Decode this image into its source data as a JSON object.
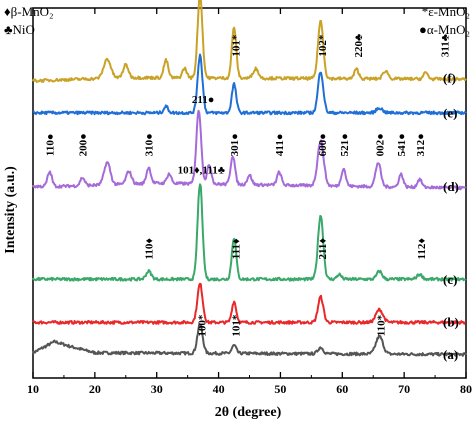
{
  "chart_data": {
    "type": "line",
    "xlabel": "2θ (degree)",
    "ylabel": "Intensity (a.u.)",
    "xlim": [
      10,
      80
    ],
    "xticks": [
      "10",
      "20",
      "30",
      "40",
      "50",
      "60",
      "70",
      "80"
    ],
    "grid": false,
    "legend": {
      "left": [
        {
          "symbol": "♦",
          "text": "β-MnO₂"
        },
        {
          "symbol": "♣",
          "text": "NiO"
        }
      ],
      "right": [
        {
          "symbol": "*",
          "text": "ε-MnO₂"
        },
        {
          "symbol": "●",
          "text": "α-MnO₂"
        }
      ]
    },
    "series": [
      {
        "name": "(a)",
        "color": "#555555",
        "offset": 0,
        "scale": 1,
        "baseline": [
          [
            10,
            0.1
          ],
          [
            13.5,
            0.45
          ],
          [
            16,
            0.3
          ],
          [
            20,
            0.1
          ],
          [
            80,
            0.05
          ]
        ],
        "peaks": [
          [
            37,
            0.9,
            0.6
          ],
          [
            42.5,
            0.25,
            0.5
          ],
          [
            56.5,
            0.2,
            0.6
          ],
          [
            66,
            0.55,
            0.8
          ]
        ]
      },
      {
        "name": "(b)",
        "color": "#e8282a",
        "offset": 1,
        "scale": 1,
        "baseline": [
          [
            10,
            0.05
          ],
          [
            80,
            0.05
          ]
        ],
        "peaks": [
          [
            37,
            1.2,
            0.6
          ],
          [
            42.5,
            0.65,
            0.5
          ],
          [
            56.5,
            0.8,
            0.6
          ],
          [
            66,
            0.4,
            0.8
          ]
        ]
      },
      {
        "name": "(c)",
        "color": "#3aa86b",
        "offset": 2.35,
        "scale": 1,
        "baseline": [
          [
            10,
            0.05
          ],
          [
            80,
            0.05
          ]
        ],
        "peaks": [
          [
            28.7,
            0.25,
            0.6
          ],
          [
            37,
            3.0,
            0.55
          ],
          [
            42.5,
            1.3,
            0.5
          ],
          [
            56.5,
            2.0,
            0.6
          ],
          [
            59.5,
            0.15,
            0.5
          ],
          [
            66,
            0.25,
            0.6
          ],
          [
            72.5,
            0.15,
            0.6
          ]
        ]
      },
      {
        "name": "(d)",
        "color": "#a56bd8",
        "offset": 5.0,
        "scale": 1,
        "baseline": [
          [
            10,
            0.3
          ],
          [
            14,
            0.3
          ],
          [
            30,
            0.4
          ],
          [
            80,
            0.25
          ]
        ],
        "peaks": [
          [
            12.7,
            0.45,
            0.5
          ],
          [
            18,
            0.25,
            0.5
          ],
          [
            22,
            0.7,
            0.7
          ],
          [
            25.5,
            0.4,
            0.6
          ],
          [
            28.7,
            0.5,
            0.5
          ],
          [
            32,
            0.3,
            0.5
          ],
          [
            36.8,
            2.3,
            0.55
          ],
          [
            38.5,
            0.6,
            0.5
          ],
          [
            42.3,
            0.9,
            0.5
          ],
          [
            45,
            0.3,
            0.5
          ],
          [
            49.8,
            0.4,
            0.5
          ],
          [
            56.5,
            1.4,
            0.7
          ],
          [
            60.2,
            0.55,
            0.5
          ],
          [
            65.8,
            0.75,
            0.6
          ],
          [
            69.5,
            0.4,
            0.5
          ],
          [
            72.5,
            0.25,
            0.5
          ]
        ]
      },
      {
        "name": "(e)",
        "color": "#1f6fd6",
        "offset": 7.55,
        "scale": 1,
        "baseline": [
          [
            10,
            0.05
          ],
          [
            80,
            0.05
          ]
        ],
        "peaks": [
          [
            31.5,
            0.2,
            0.5
          ],
          [
            37,
            1.8,
            0.55
          ],
          [
            42.5,
            0.9,
            0.5
          ],
          [
            56.5,
            1.3,
            0.6
          ],
          [
            66,
            0.15,
            0.7
          ]
        ]
      },
      {
        "name": "(f)",
        "color": "#c9a227",
        "offset": 8.45,
        "scale": 1,
        "baseline": [
          [
            10,
            0.15
          ],
          [
            25,
            0.25
          ],
          [
            80,
            0.2
          ]
        ],
        "peaks": [
          [
            22,
            0.6,
            0.8
          ],
          [
            25,
            0.4,
            0.6
          ],
          [
            31.5,
            0.55,
            0.5
          ],
          [
            34.5,
            0.3,
            0.5
          ],
          [
            37,
            2.6,
            0.55
          ],
          [
            42.5,
            1.6,
            0.5
          ],
          [
            46,
            0.3,
            0.6
          ],
          [
            56.5,
            1.8,
            0.6
          ],
          [
            62.3,
            0.3,
            0.5
          ],
          [
            67,
            0.25,
            0.6
          ],
          [
            73.5,
            0.2,
            0.5
          ]
        ]
      }
    ],
    "annotations": [
      {
        "text": "100*,111♣",
        "x": 37.2,
        "row": "f",
        "rotate": 0
      },
      {
        "text": "101*",
        "x": 42.7,
        "row": "f",
        "rotate": -90
      },
      {
        "text": "102*",
        "x": 56.7,
        "row": "f",
        "rotate": -90
      },
      {
        "text": "220♣",
        "x": 62.5,
        "row": "f",
        "rotate": -90
      },
      {
        "text": "311♣",
        "x": 76.5,
        "row": "f",
        "rotate": -90
      },
      {
        "text": "211●",
        "x": 37.5,
        "row": "d-top",
        "rotate": 0
      },
      {
        "text": "110●",
        "x": 12.7,
        "row": "d",
        "rotate": -90
      },
      {
        "text": "200●",
        "x": 18,
        "row": "d",
        "rotate": -90
      },
      {
        "text": "310●",
        "x": 28.7,
        "row": "d",
        "rotate": -90
      },
      {
        "text": "301●",
        "x": 42.5,
        "row": "d",
        "rotate": -90
      },
      {
        "text": "411●",
        "x": 49.8,
        "row": "d",
        "rotate": -90
      },
      {
        "text": "600●",
        "x": 56.7,
        "row": "d",
        "rotate": -90
      },
      {
        "text": "521●",
        "x": 60.3,
        "row": "d",
        "rotate": -90
      },
      {
        "text": "002●",
        "x": 66,
        "row": "d",
        "rotate": -90
      },
      {
        "text": "541●",
        "x": 69.5,
        "row": "d",
        "rotate": -90
      },
      {
        "text": "312●",
        "x": 72.6,
        "row": "d",
        "rotate": -90
      },
      {
        "text": "101♦,111♣",
        "x": 37.2,
        "row": "c-top",
        "rotate": 0
      },
      {
        "text": "110♦",
        "x": 28.7,
        "row": "c",
        "rotate": -90
      },
      {
        "text": "111♦",
        "x": 42.7,
        "row": "c",
        "rotate": -90
      },
      {
        "text": "211♦",
        "x": 56.7,
        "row": "c",
        "rotate": -90
      },
      {
        "text": "112♦",
        "x": 72.7,
        "row": "c",
        "rotate": -90
      },
      {
        "text": "100*",
        "x": 37.2,
        "row": "a",
        "rotate": -90
      },
      {
        "text": "101*",
        "x": 42.7,
        "row": "a",
        "rotate": -90
      },
      {
        "text": "110*",
        "x": 66.2,
        "row": "a",
        "rotate": -90
      }
    ]
  }
}
